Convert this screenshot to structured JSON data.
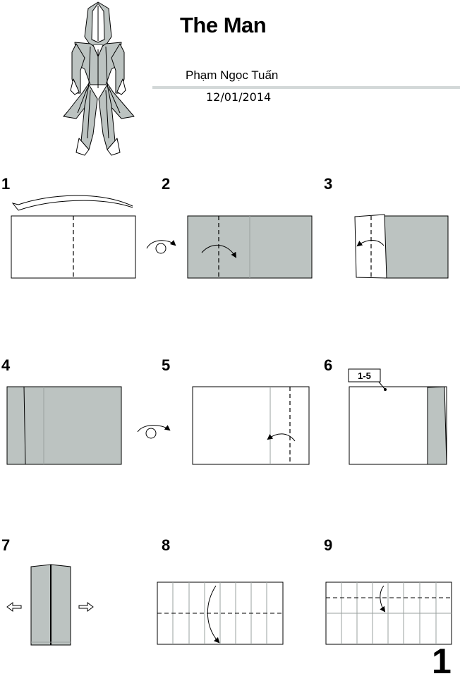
{
  "header": {
    "title": "The Man",
    "author": "Phạm Ngọc Tuấn",
    "date": "12/01/2014"
  },
  "steps": [
    {
      "number": "1"
    },
    {
      "number": "2"
    },
    {
      "number": "3"
    },
    {
      "number": "4"
    },
    {
      "number": "5"
    },
    {
      "number": "6"
    },
    {
      "number": "7"
    },
    {
      "number": "8"
    },
    {
      "number": "9"
    }
  ],
  "step6_reference": "1-5",
  "page_number": "1",
  "colors": {
    "paper_color": "#bcc3c1",
    "line": "#000000",
    "crease": "#9aa09f"
  }
}
